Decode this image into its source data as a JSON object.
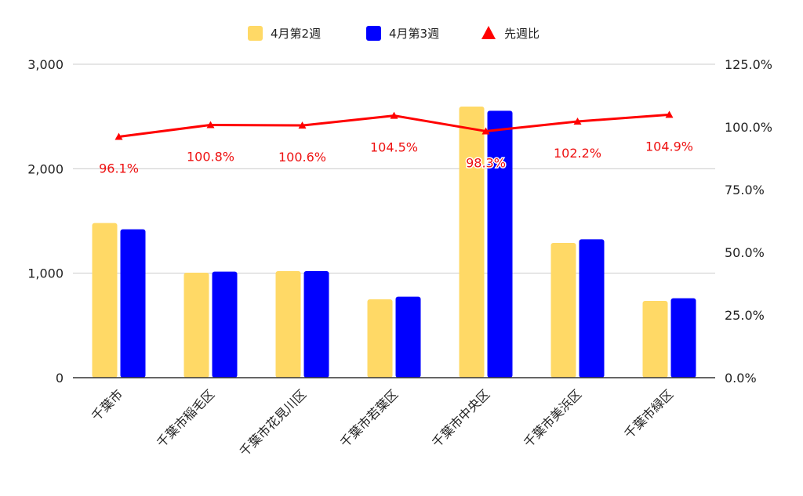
{
  "chart_data": {
    "type": "bar",
    "title": "",
    "xlabel": "",
    "ylabel": "",
    "categories": [
      "千葉市",
      "千葉市稲毛区",
      "千葉市花見川区",
      "千葉市若葉区",
      "千葉市中央区",
      "千葉市美浜区",
      "千葉市緑区"
    ],
    "series": [
      {
        "name": "4月第2週",
        "type": "bar",
        "axis": "left",
        "color": "#FFD966",
        "values": [
          1480,
          1005,
          1020,
          750,
          2595,
          1290,
          735
        ]
      },
      {
        "name": "4月第3週",
        "type": "bar",
        "axis": "left",
        "color": "#0000FF",
        "values": [
          1420,
          1015,
          1020,
          775,
          2555,
          1325,
          760
        ]
      },
      {
        "name": "先週比",
        "type": "line",
        "axis": "right",
        "color": "#FF0000",
        "values": [
          96.1,
          100.8,
          100.6,
          104.5,
          98.3,
          102.2,
          104.9
        ]
      }
    ],
    "data_labels": [
      "96.1%",
      "100.8%",
      "100.6%",
      "104.5%",
      "98.3%",
      "102.2%",
      "104.9%"
    ],
    "ylim": [
      0,
      3000
    ],
    "yticks": [
      "0",
      "1,000",
      "2,000",
      "3,000"
    ],
    "ylim_right": [
      0,
      125
    ],
    "yticks_right": [
      "0.0%",
      "25.0%",
      "50.0%",
      "75.0%",
      "100.0%",
      "125.0%"
    ],
    "legend_position": "top-center",
    "grid": true
  }
}
